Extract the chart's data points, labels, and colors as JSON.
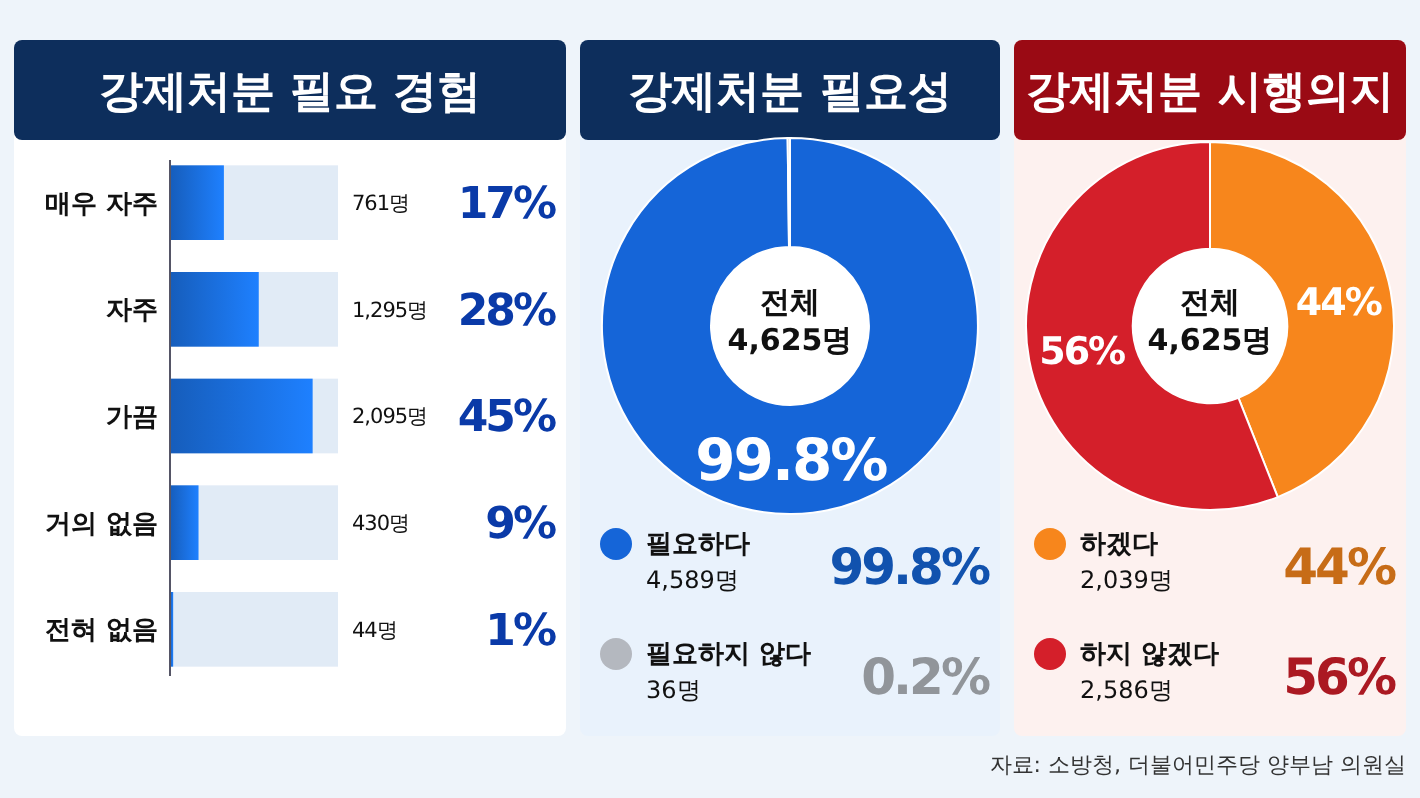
{
  "chart_data": [
    {
      "type": "bar",
      "orientation": "horizontal",
      "title": "강제처분 필요 경험",
      "categories": [
        "매우 자주",
        "자주",
        "가끔",
        "거의 없음",
        "전혀 없음"
      ],
      "values": [
        17,
        28,
        45,
        9,
        1
      ],
      "color": "#1a6fe0",
      "xlim": [
        0,
        53
      ],
      "tick_labels": false,
      "value_labels": [
        "17%",
        "28%",
        "45%",
        "9%",
        "1%"
      ],
      "annotations": [
        "761명",
        "1,295명",
        "2,095명",
        "430명",
        "44명"
      ]
    },
    {
      "type": "donut",
      "title": "강제처분 필요성",
      "categories": [
        "필요하다",
        "필요하지 않다"
      ],
      "values": [
        99.8,
        0.2
      ],
      "colors": [
        "#1565d8",
        "#b4b8bf"
      ],
      "value_labels": [
        "99.8%",
        "0.2%"
      ],
      "legend": "bottom",
      "annotations": [
        "전체",
        "4,625명",
        "4,589명",
        "36명"
      ]
    },
    {
      "type": "donut",
      "title": "강제처분 시행의지",
      "categories": [
        "하겠다",
        "하지 않겠다"
      ],
      "values": [
        44,
        56
      ],
      "colors": [
        "#f7861c",
        "#d41f2a"
      ],
      "value_labels": [
        "44%",
        "56%"
      ],
      "legend": "bottom",
      "annotations": [
        "전체",
        "4,625명",
        "2,039명",
        "2,586명",
        "자료: 소방청, 더불어민주당 양부남 의원실"
      ]
    }
  ]
}
